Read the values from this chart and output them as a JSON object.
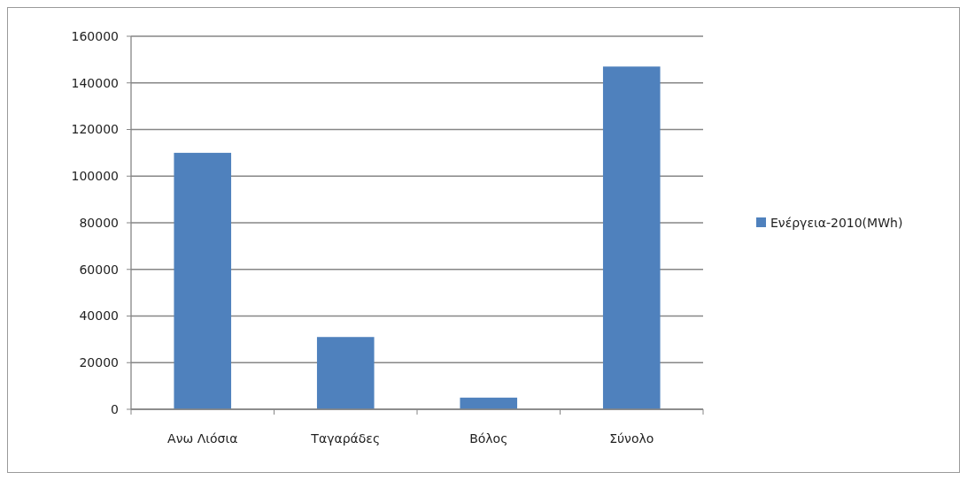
{
  "chart_data": {
    "type": "bar",
    "categories": [
      "Ανω Λιόσια",
      "Ταγαράδες",
      "Βόλος",
      "Σύνολο"
    ],
    "series": [
      {
        "name": "Ενέργεια-2010(MWh)",
        "color": "#4f81bd",
        "values": [
          110000,
          31000,
          5000,
          147000
        ]
      }
    ],
    "ylim": [
      0,
      160000
    ],
    "yticks": [
      0,
      20000,
      40000,
      60000,
      80000,
      100000,
      120000,
      140000,
      160000
    ],
    "grid": "y",
    "legend": "right"
  }
}
